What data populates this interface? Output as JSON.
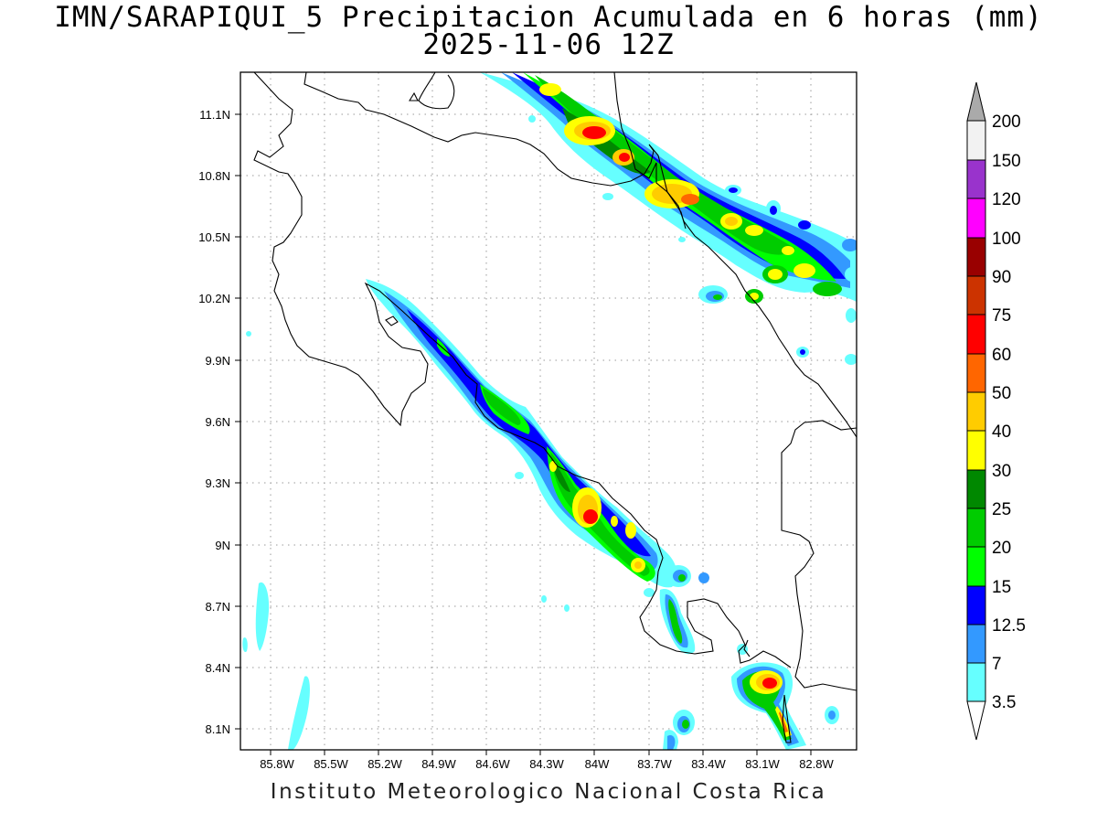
{
  "title": {
    "line1": "IMN/SARAPIQUI_5 Precipitacion Acumulada en 6 horas (mm)",
    "line2": "2025-11-06 12Z"
  },
  "footer": "Instituto Meteorologico Nacional Costa Rica",
  "map": {
    "lon_range": [
      -86.03,
      -82.64
    ],
    "lat_range": [
      8.02,
      11.36
    ],
    "grid": "dotted",
    "x_ticks": [
      "85.8W",
      "85.5W",
      "85.2W",
      "84.9W",
      "84.6W",
      "84.3W",
      "84W",
      "83.7W",
      "83.4W",
      "83.1W",
      "82.8W"
    ],
    "y_ticks": [
      "11.1N",
      "10.8N",
      "10.5N",
      "10.2N",
      "9.9N",
      "9.6N",
      "9.3N",
      "9N",
      "8.7N",
      "8.4N",
      "8.1N"
    ]
  },
  "colorbar": {
    "labels": [
      "3.5",
      "7",
      "12.5",
      "15",
      "20",
      "25",
      "30",
      "40",
      "50",
      "60",
      "75",
      "90",
      "100",
      "120",
      "150",
      "200"
    ],
    "colors": [
      "#ffffff",
      "#66ffff",
      "#3399ff",
      "#0000ff",
      "#00ff00",
      "#00cc00",
      "#008800",
      "#ffff00",
      "#ffcc00",
      "#ff6600",
      "#ff0000",
      "#cc3300",
      "#990000",
      "#ff00ff",
      "#9933cc",
      "#f2f2f2",
      "#aaaaaa"
    ]
  }
}
